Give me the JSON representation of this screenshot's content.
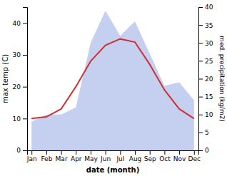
{
  "chart_data": {
    "type": "line",
    "categories": [
      "Jan",
      "Feb",
      "Mar",
      "Apr",
      "May",
      "Jun",
      "Jul",
      "Aug",
      "Sep",
      "Oct",
      "Nov",
      "Dec"
    ],
    "x_label": "date (month)",
    "y_label": "max temp (C)",
    "y2_label": "med. precipitation (kg/m2)",
    "series": [
      {
        "type": "area",
        "axis": "y2",
        "color": "#c5cff0",
        "values": [
          8,
          10,
          10,
          12,
          30,
          39,
          32,
          36,
          27,
          18,
          19,
          14
        ]
      },
      {
        "type": "line",
        "color": "#cc3333",
        "values": [
          10,
          10.5,
          13,
          20,
          28,
          33,
          35,
          34,
          27,
          19,
          13,
          10
        ]
      }
    ],
    "ylim": [
      0,
      45
    ],
    "yticks": [
      0,
      10,
      20,
      30,
      40
    ],
    "y2lim": [
      0,
      40
    ],
    "y2ticks": [
      0,
      5,
      10,
      15,
      20,
      25,
      30,
      35,
      40
    ],
    "grid": false
  }
}
